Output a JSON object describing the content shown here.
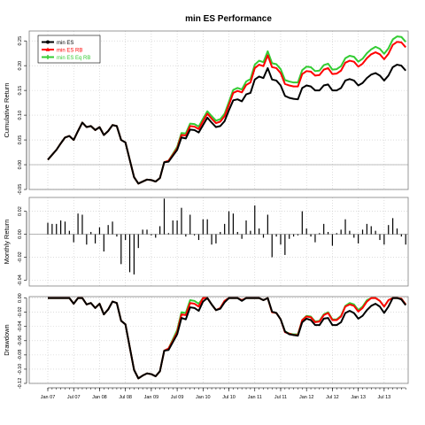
{
  "title": "min ES Performance",
  "colors": {
    "series": [
      "#000000",
      "#ff0000",
      "#33cc33"
    ],
    "grid": "#c8c8c8",
    "zero": "#aaaaaa",
    "frame": "#7f7f7f"
  },
  "chart_data": [
    {
      "type": "line",
      "panel": "cumulative",
      "ylabel": "Cumulative Return",
      "ylim": [
        -0.05,
        0.27
      ],
      "yticks": [
        -0.05,
        0.0,
        0.05,
        0.1,
        0.15,
        0.2,
        0.25
      ],
      "ytick_labels": [
        "-0.05",
        "0.00",
        "0.05",
        "0.10",
        "0.15",
        "0.20",
        "0.25"
      ],
      "legend": {
        "position": "top-left",
        "entries": [
          "min ES",
          "min ES RB",
          "min ES Eq RB"
        ]
      },
      "grid": true,
      "x": [
        "2007-01",
        "2007-02",
        "2007-03",
        "2007-04",
        "2007-05",
        "2007-06",
        "2007-07",
        "2007-08",
        "2007-09",
        "2007-10",
        "2007-11",
        "2007-12",
        "2008-01",
        "2008-02",
        "2008-03",
        "2008-04",
        "2008-05",
        "2008-06",
        "2008-07",
        "2008-08",
        "2008-09",
        "2008-10",
        "2008-11",
        "2008-12",
        "2009-01",
        "2009-02",
        "2009-03",
        "2009-04",
        "2009-05",
        "2009-06",
        "2009-07",
        "2009-08",
        "2009-09",
        "2009-10",
        "2009-11",
        "2009-12",
        "2010-01",
        "2010-02",
        "2010-03",
        "2010-04",
        "2010-05",
        "2010-06",
        "2010-07",
        "2010-08",
        "2010-09",
        "2010-10",
        "2010-11",
        "2010-12",
        "2011-01",
        "2011-02",
        "2011-03",
        "2011-04",
        "2011-05",
        "2011-06",
        "2011-07",
        "2011-08",
        "2011-09",
        "2011-10",
        "2011-11",
        "2011-12",
        "2012-01",
        "2012-02",
        "2012-03",
        "2012-04",
        "2012-05",
        "2012-06",
        "2012-07",
        "2012-08",
        "2012-09",
        "2012-10",
        "2012-11",
        "2012-12",
        "2013-01",
        "2013-02",
        "2013-03",
        "2013-04",
        "2013-05",
        "2013-06",
        "2013-07",
        "2013-08",
        "2013-09",
        "2013-10",
        "2013-11",
        "2013-12"
      ],
      "series": [
        {
          "name": "min ES",
          "values": [
            0.01,
            0.02,
            0.03,
            0.043,
            0.055,
            0.058,
            0.05,
            0.068,
            0.085,
            0.076,
            0.078,
            0.07,
            0.076,
            0.06,
            0.068,
            0.08,
            0.078,
            0.05,
            0.045,
            0.01,
            -0.025,
            -0.038,
            -0.034,
            -0.03,
            -0.031,
            -0.034,
            -0.027,
            0.005,
            0.006,
            0.018,
            0.03,
            0.055,
            0.053,
            0.071,
            0.07,
            0.065,
            0.08,
            0.095,
            0.085,
            0.076,
            0.078,
            0.088,
            0.11,
            0.13,
            0.132,
            0.128,
            0.142,
            0.145,
            0.172,
            0.178,
            0.175,
            0.195,
            0.172,
            0.17,
            0.16,
            0.139,
            0.135,
            0.133,
            0.132,
            0.155,
            0.16,
            0.158,
            0.15,
            0.15,
            0.16,
            0.162,
            0.15,
            0.15,
            0.155,
            0.17,
            0.173,
            0.17,
            0.16,
            0.165,
            0.175,
            0.182,
            0.185,
            0.18,
            0.17,
            0.18,
            0.197,
            0.202,
            0.2,
            0.19
          ]
        },
        {
          "name": "min ES RB",
          "values": [
            0.01,
            0.02,
            0.03,
            0.043,
            0.055,
            0.058,
            0.05,
            0.068,
            0.085,
            0.076,
            0.078,
            0.07,
            0.076,
            0.06,
            0.068,
            0.08,
            0.078,
            0.05,
            0.045,
            0.01,
            -0.025,
            -0.038,
            -0.034,
            -0.03,
            -0.031,
            -0.034,
            -0.027,
            0.005,
            0.008,
            0.02,
            0.033,
            0.06,
            0.059,
            0.078,
            0.077,
            0.072,
            0.088,
            0.103,
            0.093,
            0.084,
            0.087,
            0.098,
            0.121,
            0.145,
            0.149,
            0.146,
            0.161,
            0.166,
            0.195,
            0.202,
            0.199,
            0.221,
            0.197,
            0.195,
            0.185,
            0.163,
            0.16,
            0.158,
            0.158,
            0.183,
            0.189,
            0.188,
            0.18,
            0.181,
            0.192,
            0.195,
            0.183,
            0.184,
            0.19,
            0.206,
            0.21,
            0.208,
            0.198,
            0.204,
            0.215,
            0.223,
            0.227,
            0.223,
            0.213,
            0.224,
            0.242,
            0.248,
            0.247,
            0.237
          ]
        },
        {
          "name": "min ES Eq RB",
          "values": [
            0.01,
            0.02,
            0.03,
            0.043,
            0.055,
            0.058,
            0.05,
            0.068,
            0.085,
            0.076,
            0.078,
            0.07,
            0.076,
            0.06,
            0.068,
            0.08,
            0.078,
            0.05,
            0.045,
            0.01,
            -0.025,
            -0.038,
            -0.034,
            -0.03,
            -0.031,
            -0.034,
            -0.027,
            0.005,
            0.008,
            0.022,
            0.036,
            0.064,
            0.063,
            0.083,
            0.082,
            0.077,
            0.093,
            0.108,
            0.098,
            0.089,
            0.092,
            0.103,
            0.127,
            0.151,
            0.155,
            0.152,
            0.168,
            0.173,
            0.202,
            0.21,
            0.207,
            0.229,
            0.205,
            0.203,
            0.193,
            0.171,
            0.168,
            0.166,
            0.166,
            0.191,
            0.198,
            0.197,
            0.189,
            0.19,
            0.201,
            0.204,
            0.192,
            0.193,
            0.199,
            0.215,
            0.22,
            0.218,
            0.208,
            0.214,
            0.225,
            0.233,
            0.238,
            0.234,
            0.224,
            0.235,
            0.253,
            0.259,
            0.258,
            0.248
          ]
        }
      ]
    },
    {
      "type": "bar",
      "panel": "monthly",
      "ylabel": "Monthly Return",
      "ylim": [
        -0.045,
        0.032
      ],
      "yticks": [
        -0.04,
        -0.02,
        0.0,
        0.02
      ],
      "ytick_labels": [
        "-0.04",
        "-0.02",
        "0.00",
        "0.02"
      ],
      "grid": true,
      "x": [
        "2007-01",
        "2007-02",
        "2007-03",
        "2007-04",
        "2007-05",
        "2007-06",
        "2007-07",
        "2007-08",
        "2007-09",
        "2007-10",
        "2007-11",
        "2007-12",
        "2008-01",
        "2008-02",
        "2008-03",
        "2008-04",
        "2008-05",
        "2008-06",
        "2008-07",
        "2008-08",
        "2008-09",
        "2008-10",
        "2008-11",
        "2008-12",
        "2009-01",
        "2009-02",
        "2009-03",
        "2009-04",
        "2009-05",
        "2009-06",
        "2009-07",
        "2009-08",
        "2009-09",
        "2009-10",
        "2009-11",
        "2009-12",
        "2010-01",
        "2010-02",
        "2010-03",
        "2010-04",
        "2010-05",
        "2010-06",
        "2010-07",
        "2010-08",
        "2010-09",
        "2010-10",
        "2010-11",
        "2010-12",
        "2011-01",
        "2011-02",
        "2011-03",
        "2011-04",
        "2011-05",
        "2011-06",
        "2011-07",
        "2011-08",
        "2011-09",
        "2011-10",
        "2011-11",
        "2011-12",
        "2012-01",
        "2012-02",
        "2012-03",
        "2012-04",
        "2012-05",
        "2012-06",
        "2012-07",
        "2012-08",
        "2012-09",
        "2012-10",
        "2012-11",
        "2012-12",
        "2013-01",
        "2013-02",
        "2013-03",
        "2013-04",
        "2013-05",
        "2013-06",
        "2013-07",
        "2013-08",
        "2013-09",
        "2013-10",
        "2013-11",
        "2013-12"
      ],
      "values": [
        0.01,
        0.009,
        0.009,
        0.012,
        0.011,
        0.003,
        -0.007,
        0.018,
        0.017,
        -0.009,
        0.002,
        -0.008,
        0.006,
        -0.015,
        0.008,
        0.011,
        -0.002,
        -0.026,
        -0.005,
        -0.033,
        -0.035,
        -0.012,
        0.004,
        0.004,
        -0.001,
        -0.003,
        0.007,
        0.031,
        0.001,
        0.012,
        0.012,
        0.023,
        -0.002,
        0.017,
        -0.001,
        -0.005,
        0.013,
        0.013,
        -0.009,
        -0.008,
        0.002,
        0.009,
        0.02,
        0.018,
        0.002,
        -0.004,
        0.012,
        0.003,
        0.025,
        0.005,
        -0.003,
        0.017,
        -0.02,
        -0.002,
        -0.009,
        -0.018,
        -0.004,
        -0.002,
        -0.001,
        0.02,
        0.005,
        -0.002,
        -0.007,
        0.001,
        0.009,
        0.002,
        -0.01,
        0.001,
        0.004,
        0.013,
        0.003,
        -0.003,
        -0.008,
        0.004,
        0.009,
        0.007,
        0.003,
        -0.005,
        -0.009,
        0.008,
        0.014,
        0.005,
        -0.002,
        -0.009
      ]
    },
    {
      "type": "area",
      "panel": "drawdown",
      "ylabel": "Drawdown",
      "ylim": [
        -0.12,
        0.002
      ],
      "yticks": [
        -0.12,
        -0.1,
        -0.08,
        -0.06,
        -0.04,
        -0.02,
        0.0
      ],
      "ytick_labels": [
        "-0.12",
        "-0.10",
        "-0.08",
        "-0.06",
        "-0.04",
        "-0.02",
        "0.00"
      ],
      "grid": true,
      "xtick_labels": [
        "Jan 07",
        "Jul 07",
        "Jan 08",
        "Jul 08",
        "Jan 09",
        "Jul 09",
        "Jan 10",
        "Jul 10",
        "Jan 11",
        "Jul 11",
        "Jan 12",
        "Jul 12",
        "Jan 13",
        "Jul 13"
      ],
      "x": [
        "2007-01",
        "2007-02",
        "2007-03",
        "2007-04",
        "2007-05",
        "2007-06",
        "2007-07",
        "2007-08",
        "2007-09",
        "2007-10",
        "2007-11",
        "2007-12",
        "2008-01",
        "2008-02",
        "2008-03",
        "2008-04",
        "2008-05",
        "2008-06",
        "2008-07",
        "2008-08",
        "2008-09",
        "2008-10",
        "2008-11",
        "2008-12",
        "2009-01",
        "2009-02",
        "2009-03",
        "2009-04",
        "2009-05",
        "2009-06",
        "2009-07",
        "2009-08",
        "2009-09",
        "2009-10",
        "2009-11",
        "2009-12",
        "2010-01",
        "2010-02",
        "2010-03",
        "2010-04",
        "2010-05",
        "2010-06",
        "2010-07",
        "2010-08",
        "2010-09",
        "2010-10",
        "2010-11",
        "2010-12",
        "2011-01",
        "2011-02",
        "2011-03",
        "2011-04",
        "2011-05",
        "2011-06",
        "2011-07",
        "2011-08",
        "2011-09",
        "2011-10",
        "2011-11",
        "2011-12",
        "2012-01",
        "2012-02",
        "2012-03",
        "2012-04",
        "2012-05",
        "2012-06",
        "2012-07",
        "2012-08",
        "2012-09",
        "2012-10",
        "2012-11",
        "2012-12",
        "2013-01",
        "2013-02",
        "2013-03",
        "2013-04",
        "2013-05",
        "2013-06",
        "2013-07",
        "2013-08",
        "2013-09",
        "2013-10",
        "2013-11",
        "2013-12"
      ],
      "series": [
        {
          "name": "min ES",
          "values": [
            0.0,
            0.0,
            0.0,
            0.0,
            0.0,
            0.0,
            -0.008,
            0.0,
            0.0,
            -0.009,
            -0.007,
            -0.014,
            -0.008,
            -0.023,
            -0.016,
            -0.005,
            -0.007,
            -0.032,
            -0.037,
            -0.069,
            -0.101,
            -0.113,
            -0.109,
            -0.106,
            -0.107,
            -0.11,
            -0.103,
            -0.074,
            -0.073,
            -0.062,
            -0.051,
            -0.028,
            -0.03,
            -0.013,
            -0.014,
            -0.018,
            -0.005,
            0.0,
            -0.009,
            -0.017,
            -0.015,
            -0.006,
            0.0,
            0.0,
            0.0,
            -0.004,
            0.0,
            0.0,
            0.0,
            0.0,
            -0.003,
            0.0,
            -0.019,
            -0.021,
            -0.03,
            -0.047,
            -0.051,
            -0.052,
            -0.053,
            -0.034,
            -0.029,
            -0.031,
            -0.038,
            -0.038,
            -0.029,
            -0.028,
            -0.038,
            -0.038,
            -0.034,
            -0.021,
            -0.018,
            -0.021,
            -0.029,
            -0.025,
            -0.017,
            -0.011,
            -0.008,
            -0.012,
            -0.021,
            -0.012,
            0.0,
            0.0,
            -0.002,
            -0.01
          ]
        },
        {
          "name": "min ES RB",
          "values": [
            0.0,
            0.0,
            0.0,
            0.0,
            0.0,
            0.0,
            -0.008,
            0.0,
            0.0,
            -0.009,
            -0.007,
            -0.014,
            -0.008,
            -0.023,
            -0.016,
            -0.005,
            -0.007,
            -0.032,
            -0.037,
            -0.069,
            -0.101,
            -0.113,
            -0.109,
            -0.106,
            -0.107,
            -0.11,
            -0.103,
            -0.074,
            -0.071,
            -0.06,
            -0.048,
            -0.023,
            -0.024,
            -0.007,
            -0.008,
            -0.012,
            0.0,
            0.0,
            -0.009,
            -0.017,
            -0.014,
            -0.004,
            0.0,
            0.0,
            0.0,
            -0.003,
            0.0,
            0.0,
            0.0,
            0.0,
            -0.003,
            0.0,
            -0.02,
            -0.021,
            -0.03,
            -0.048,
            -0.05,
            -0.052,
            -0.052,
            -0.031,
            -0.026,
            -0.027,
            -0.034,
            -0.033,
            -0.024,
            -0.021,
            -0.031,
            -0.031,
            -0.026,
            -0.012,
            -0.009,
            -0.011,
            -0.019,
            -0.014,
            -0.005,
            0.0,
            0.0,
            -0.004,
            -0.012,
            -0.003,
            0.0,
            0.0,
            -0.001,
            -0.009
          ]
        },
        {
          "name": "min ES Eq RB",
          "values": [
            0.0,
            0.0,
            0.0,
            0.0,
            0.0,
            0.0,
            -0.008,
            0.0,
            0.0,
            -0.009,
            -0.007,
            -0.014,
            -0.008,
            -0.023,
            -0.016,
            -0.005,
            -0.007,
            -0.032,
            -0.037,
            -0.069,
            -0.101,
            -0.113,
            -0.109,
            -0.106,
            -0.107,
            -0.11,
            -0.103,
            -0.074,
            -0.071,
            -0.058,
            -0.045,
            -0.02,
            -0.021,
            -0.003,
            -0.004,
            -0.008,
            0.0,
            0.0,
            -0.009,
            -0.017,
            -0.014,
            -0.004,
            0.0,
            0.0,
            0.0,
            -0.003,
            0.0,
            0.0,
            0.0,
            0.0,
            -0.003,
            0.0,
            -0.02,
            -0.021,
            -0.03,
            -0.047,
            -0.05,
            -0.051,
            -0.051,
            -0.031,
            -0.025,
            -0.026,
            -0.033,
            -0.032,
            -0.023,
            -0.02,
            -0.03,
            -0.03,
            -0.025,
            -0.011,
            -0.007,
            -0.009,
            -0.017,
            -0.012,
            -0.003,
            0.0,
            0.0,
            -0.004,
            -0.012,
            -0.003,
            0.0,
            0.0,
            -0.001,
            -0.009
          ]
        }
      ]
    }
  ]
}
